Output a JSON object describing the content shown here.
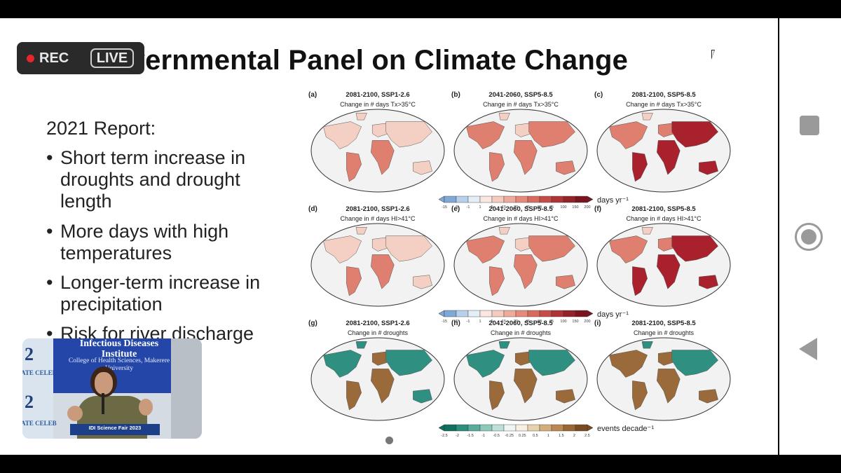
{
  "slide": {
    "title": "Intergovernmental Panel on Climate Change",
    "title_visible": "overnmental Panel on Climate Change",
    "report_label": "2021 Report:",
    "bullet_glyph": "•",
    "bullets": [
      "Short term increase in droughts and drought length",
      "More days with high temperatures",
      "Longer-term increase in precipitation",
      "Risk for river discharge"
    ]
  },
  "recording": {
    "rec_label": "REC",
    "live_label": "LIVE"
  },
  "webcam": {
    "banner_title": "Infectious Diseases Institute",
    "banner_sub": "College of Health Sciences, Makerere University",
    "side_label": "ATE CELEB",
    "side_digit": "2",
    "fair_label": "IDI Science Fair 2023"
  },
  "figure": {
    "panels": [
      {
        "letter": "(a)",
        "period": "2081-2100, SSP1-2.6",
        "metric": "Change in # days Tx>35°C",
        "palette": "heat",
        "intensity": 0.45
      },
      {
        "letter": "(b)",
        "period": "2041-2060, SSP5-8.5",
        "metric": "Change in # days Tx>35°C",
        "palette": "heat",
        "intensity": 0.6
      },
      {
        "letter": "(c)",
        "period": "2081-2100, SSP5-8.5",
        "metric": "Change in # days Tx>35°C",
        "palette": "heat",
        "intensity": 0.9
      },
      {
        "letter": "(d)",
        "period": "2081-2100, SSP1-2.6",
        "metric": "Change in # days HI>41°C",
        "palette": "heat",
        "intensity": 0.45
      },
      {
        "letter": "(e)",
        "period": "2041-2060, SSP5-8.5",
        "metric": "Change in # days HI>41°C",
        "palette": "heat",
        "intensity": 0.65
      },
      {
        "letter": "(f)",
        "period": "2081-2100, SSP5-8.5",
        "metric": "Change in # days HI>41°C",
        "palette": "heat",
        "intensity": 0.95
      },
      {
        "letter": "(g)",
        "period": "2081-2100, SSP1-2.6",
        "metric": "Change in # droughts",
        "palette": "drought",
        "intensity": 0.4
      },
      {
        "letter": "(h)",
        "period": "2041-2060, SSP5-8.5",
        "metric": "Change in # droughts",
        "palette": "drought",
        "intensity": 0.6
      },
      {
        "letter": "(i)",
        "period": "2081-2100, SSP5-8.5",
        "metric": "Change in # droughts",
        "palette": "drought",
        "intensity": 0.8
      }
    ],
    "colorbars": [
      {
        "ticks": [
          "-15",
          "-5",
          "-1",
          "1",
          "5",
          "15",
          "30",
          "45",
          "60",
          "75",
          "100",
          "150",
          "200"
        ],
        "unit": "days yr⁻¹",
        "colors": [
          "#7fa9d6",
          "#b7d1ea",
          "#e4eef7",
          "#fbe7e1",
          "#f6cbbf",
          "#efaa9b",
          "#e68a7b",
          "#d96a5e",
          "#c64c46",
          "#b03336",
          "#952228",
          "#7a1420"
        ]
      },
      {
        "ticks": [
          "-15",
          "-5",
          "-1",
          "1",
          "5",
          "15",
          "30",
          "45",
          "60",
          "75",
          "100",
          "150",
          "200"
        ],
        "unit": "days yr⁻¹",
        "colors": [
          "#7fa9d6",
          "#b7d1ea",
          "#e4eef7",
          "#fbe7e1",
          "#f6cbbf",
          "#efaa9b",
          "#e68a7b",
          "#d96a5e",
          "#c64c46",
          "#b03336",
          "#952228",
          "#7a1420"
        ]
      },
      {
        "ticks": [
          "-2.5",
          "-2",
          "-1.5",
          "-1",
          "-0.5",
          "-0.25",
          "0.25",
          "0.5",
          "1",
          "1.5",
          "2",
          "2.5"
        ],
        "unit": "events decade⁻¹",
        "colors": [
          "#0f6f60",
          "#2a8f7d",
          "#59ac9c",
          "#8cc8bb",
          "#bfe0d8",
          "#eef6f3",
          "#f7efe2",
          "#e9d1ad",
          "#d4ae7a",
          "#bb8852",
          "#9c6633",
          "#7a4a20"
        ]
      }
    ],
    "heat_colors": {
      "low": "#f4cfc3",
      "mid": "#df7f6f",
      "high": "#a8212c"
    },
    "drought_colors": {
      "wet": "#2f8f80",
      "dry": "#9a6a3a"
    }
  },
  "navigation": {
    "square_icon": "recent-apps-icon",
    "circle_icon": "home-icon",
    "back_icon": "back-icon"
  }
}
